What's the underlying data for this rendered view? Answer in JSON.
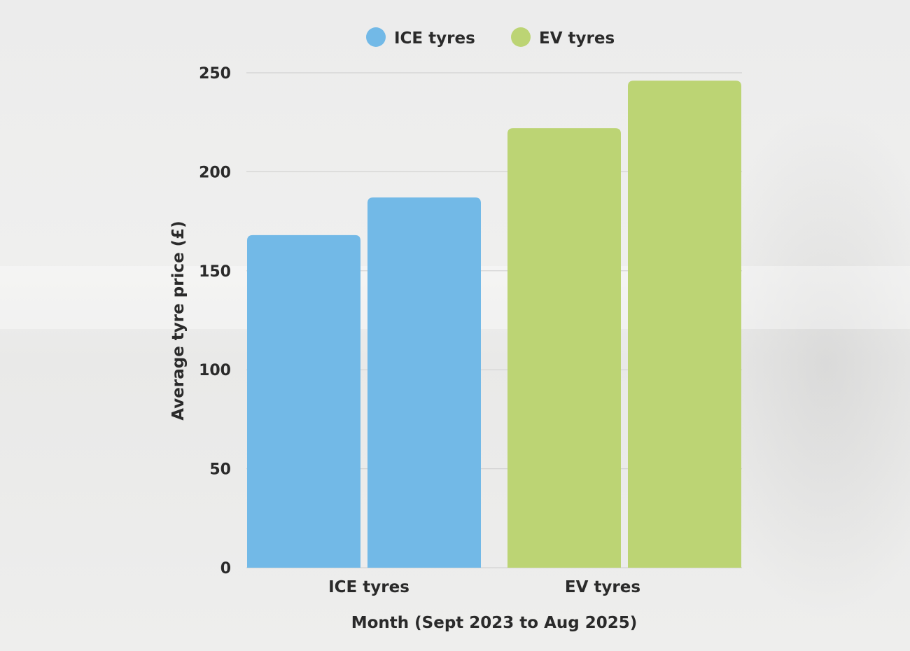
{
  "chart_data": {
    "type": "bar",
    "title": "",
    "xlabel": "Month (Sept 2023 to Aug 2025)",
    "ylabel": "Average tyre price (£)",
    "ylim": [
      0,
      250
    ],
    "yticks": [
      0,
      50,
      100,
      150,
      200,
      250
    ],
    "grid": true,
    "legend_placement": "top",
    "categories": [
      "ICE tyres",
      "EV tyres"
    ],
    "series": [
      {
        "name": "ICE tyres",
        "color": "#72b9e7",
        "category": "ICE tyres",
        "values": [
          168,
          187
        ]
      },
      {
        "name": "EV tyres",
        "color": "#bcd474",
        "category": "EV tyres",
        "values": [
          222,
          246
        ]
      }
    ]
  }
}
